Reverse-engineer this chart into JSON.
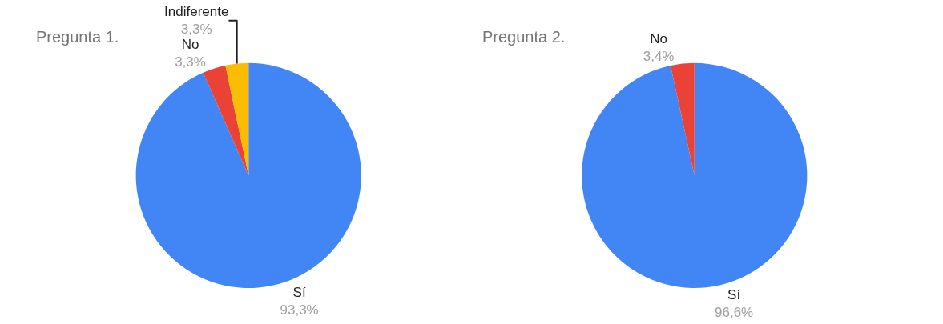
{
  "chart_data": [
    {
      "type": "pie",
      "title": "Pregunta 1.",
      "categories": [
        "Sí",
        "No",
        "Indiferente"
      ],
      "values": [
        93.3,
        3.3,
        3.3
      ],
      "colors": [
        "#4285f4",
        "#ea4335",
        "#fbbc04"
      ],
      "value_labels": [
        "93,3%",
        "3,3%",
        "3,3%"
      ]
    },
    {
      "type": "pie",
      "title": "Pregunta 2.",
      "categories": [
        "Sí",
        "No"
      ],
      "values": [
        96.6,
        3.4
      ],
      "colors": [
        "#4285f4",
        "#ea4335"
      ],
      "value_labels": [
        "96,6%",
        "3,4%"
      ]
    }
  ]
}
